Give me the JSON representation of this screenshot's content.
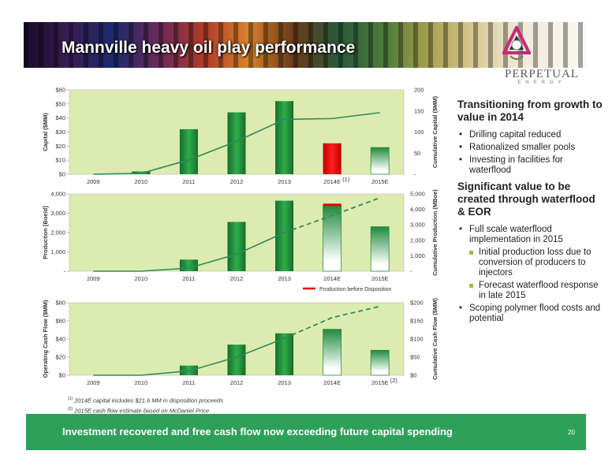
{
  "title": "Mannville heavy oil play performance",
  "logo": {
    "name": "PERPETUAL",
    "sub": "ENERGY"
  },
  "right": {
    "h1": "Transitioning from growth to value in 2014",
    "bullets1": [
      "Drilling capital reduced",
      "Rationalized smaller pools",
      "Investing in facilities for waterflood"
    ],
    "h2": "Significant value to be created through waterflood & EOR",
    "bullets2": [
      {
        "text": "Full scale waterflood implementation in 2015",
        "sub": false
      },
      {
        "text": "Initial production loss due to conversion of producers to injectors",
        "sub": true
      },
      {
        "text": "Forecast waterflood response in late 2015",
        "sub": true
      },
      {
        "text": "Scoping polymer flood costs and potential",
        "sub": false
      }
    ]
  },
  "footnotes": {
    "n1_mark": "(1)",
    "n1": "2014E capital includes $21.6 MM in disposition proceeds",
    "n2_mark": "(2)",
    "n2": "2015E cash flow estimate based on McDaniel Price"
  },
  "banner": "Investment recovered and free cash flow now exceeding future capital spending",
  "page_number": "20",
  "colors": {
    "bar_green": "#1f8a3c",
    "bar_red": "#e60000",
    "plot_bg": "#dcebb0",
    "line": "#2e8b57"
  },
  "chart_data": [
    {
      "type": "bar",
      "categories": [
        "2009",
        "2010",
        "2011",
        "2012",
        "2013",
        "2014E",
        "2015E"
      ],
      "series": [
        {
          "values": [
            0,
            2,
            32,
            44,
            52,
            22,
            19
          ]
        }
      ],
      "secondary_series": [
        {
          "type": "line",
          "values": [
            0,
            2,
            34,
            78,
            130,
            132,
            146
          ],
          "dashed_from_index": null
        }
      ],
      "ylabel": "Capital ($MM)",
      "y2label": "Cumulative Capital ($MM)",
      "ylim": [
        0,
        60
      ],
      "y2lim": [
        0,
        200
      ],
      "yticks": [
        "$0",
        "$10",
        "$20",
        "$30",
        "$40",
        "$50",
        "$60"
      ],
      "y2ticks": [
        "-",
        "50",
        "100",
        "150",
        "200"
      ],
      "category_marks": {
        "2014E": "(1)"
      },
      "bar_styles": [
        "solid",
        "solid",
        "solid",
        "solid",
        "solid",
        "red",
        "fade"
      ],
      "grid": false
    },
    {
      "type": "bar",
      "categories": [
        "2009",
        "2010",
        "2011",
        "2012",
        "2013",
        "2014E",
        "2015E"
      ],
      "series": [
        {
          "values": [
            0,
            0,
            600,
            2550,
            3650,
            3400,
            2300
          ]
        }
      ],
      "marker": {
        "name": "Production before Disposition",
        "category": "2014E",
        "value": 3500
      },
      "secondary_series": [
        {
          "type": "line",
          "values": [
            0,
            0,
            200,
            1100,
            2500,
            3600,
            4750
          ],
          "dashed_from_index": 4
        }
      ],
      "ylabel": "Production [Boe/d]",
      "y2label": "Cumulative Production (MBoe)",
      "ylim": [
        0,
        4000
      ],
      "y2lim": [
        0,
        5000
      ],
      "yticks": [
        "-",
        "1,000",
        "2,000",
        "3,000",
        "4,000"
      ],
      "y2ticks": [
        "-",
        "1,000",
        "2,000",
        "3,000",
        "4,000",
        "5,000"
      ],
      "bar_styles": [
        "solid",
        "solid",
        "solid",
        "solid",
        "solid",
        "fade",
        "fade"
      ],
      "legend": "Production before Disposition",
      "grid": false
    },
    {
      "type": "bar",
      "categories": [
        "2009",
        "2010",
        "2011",
        "2012",
        "2013",
        "2014E",
        "2015E"
      ],
      "series": [
        {
          "values": [
            0,
            0,
            12,
            38,
            52,
            57,
            31
          ]
        }
      ],
      "secondary_series": [
        {
          "type": "line",
          "values": [
            0,
            0,
            12,
            50,
            102,
            159,
            190
          ],
          "dashed_from_index": 4
        }
      ],
      "ylabel": "Operating Cash Flow ($MM)",
      "y2label": "Cumulative Cash Flow ($MM)",
      "ylim": [
        0,
        90
      ],
      "y2lim": [
        0,
        200
      ],
      "yticks": [
        "$0",
        "$20",
        "$40",
        "$60",
        "$80"
      ],
      "y2ticks": [
        "$0",
        "$50",
        "$100",
        "$150",
        "$200"
      ],
      "category_marks": {
        "2015E": "(2)"
      },
      "bar_styles": [
        "solid",
        "solid",
        "solid",
        "solid",
        "solid",
        "fade",
        "fade"
      ],
      "grid": false
    }
  ]
}
